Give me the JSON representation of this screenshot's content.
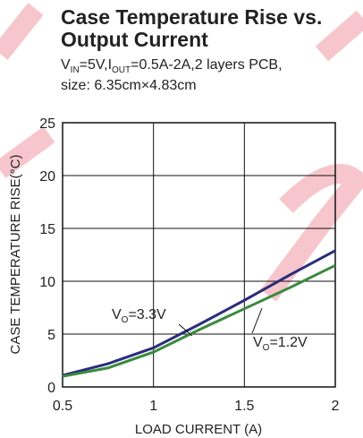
{
  "chart_data": {
    "type": "line",
    "title": [
      "Case Temperature Rise vs.",
      "Output Current"
    ],
    "subtitle": [
      [
        "V",
        "IN",
        "=5V,I",
        "OUT",
        "=0.5A-2A,2 layers PCB,"
      ],
      [
        "size: 6.35cm×4.83cm"
      ]
    ],
    "x_label": "LOAD CURRENT (A)",
    "y_label": "CASE TEMPERATURE RISE(°C)",
    "x": [
      0.5,
      0.75,
      1,
      1.25,
      1.5,
      1.75,
      2
    ],
    "series": [
      {
        "color": "#2b2d7a",
        "values": [
          1.1,
          2.2,
          3.7,
          5.9,
          8.2,
          10.6,
          12.9
        ]
      },
      {
        "color": "#3a8a3e",
        "values": [
          1.0,
          1.8,
          3.3,
          5.4,
          7.4,
          9.4,
          11.5
        ]
      }
    ],
    "annotations": [
      [
        "V",
        "O",
        "=3.3V"
      ],
      [
        "V",
        "O",
        "=1.2V"
      ]
    ],
    "xlim": [
      0.5,
      2
    ],
    "xticks": [
      0.5,
      1,
      1.5,
      2
    ],
    "ylim": [
      0,
      25
    ],
    "yticks": [
      0,
      5,
      10,
      15,
      20,
      25
    ],
    "grid": true
  }
}
